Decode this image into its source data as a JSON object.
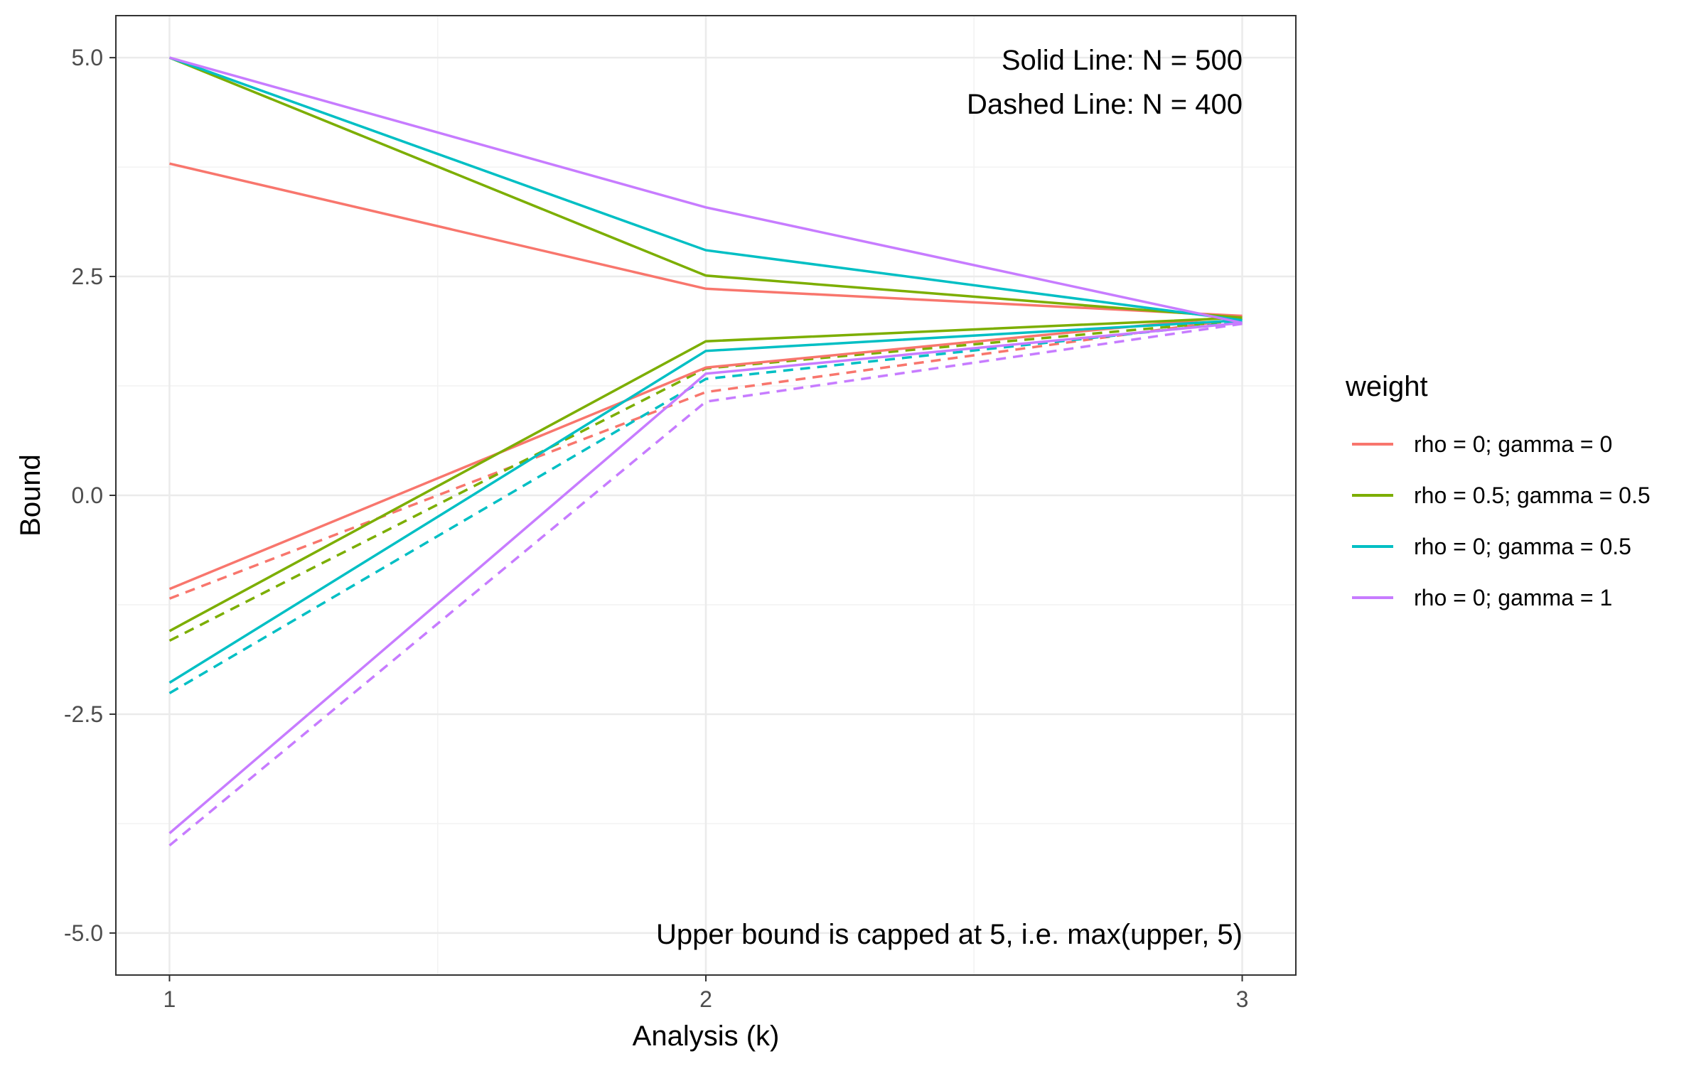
{
  "chart_data": {
    "type": "line",
    "title": "",
    "xlabel": "Analysis (k)",
    "ylabel": "Bound",
    "x": [
      1,
      2,
      3
    ],
    "xticks": [
      "1",
      "2",
      "3"
    ],
    "yticks": [
      "-5.0",
      "-2.5",
      "0.0",
      "2.5",
      "5.0"
    ],
    "xlim": [
      0.9,
      3.1
    ],
    "ylim": [
      -5.48,
      5.48
    ],
    "grid": true,
    "legend": {
      "title": "weight",
      "position": "right"
    },
    "annotations": [
      "Solid Line: N = 500",
      "Dashed Line: N = 400",
      "Upper bound is capped at 5, i.e. max(upper, 5)"
    ],
    "series": [
      {
        "name": "rho = 0; gamma = 0",
        "color": "#F8766D",
        "upper_N500": [
          3.79,
          2.36,
          2.05
        ],
        "lower_N500": [
          -1.07,
          1.46,
          2.05
        ],
        "lower_N400": [
          -1.18,
          1.18,
          2.02
        ]
      },
      {
        "name": "rho = 0.5; gamma = 0.5",
        "color": "#7CAE00",
        "upper_N500": [
          5.0,
          2.51,
          2.03
        ],
        "lower_N500": [
          -1.55,
          1.76,
          2.03
        ],
        "lower_N400": [
          -1.66,
          1.45,
          2.0
        ]
      },
      {
        "name": "rho = 0; gamma = 0.5",
        "color": "#00BFC4",
        "upper_N500": [
          5.0,
          2.8,
          2.0
        ],
        "lower_N500": [
          -2.14,
          1.65,
          2.0
        ],
        "lower_N400": [
          -2.26,
          1.33,
          1.98
        ]
      },
      {
        "name": "rho = 0; gamma = 1",
        "color": "#C77CFF",
        "upper_N500": [
          5.0,
          3.29,
          1.97
        ],
        "lower_N500": [
          -3.86,
          1.39,
          1.97
        ],
        "lower_N400": [
          -4.0,
          1.07,
          1.96
        ]
      }
    ]
  }
}
